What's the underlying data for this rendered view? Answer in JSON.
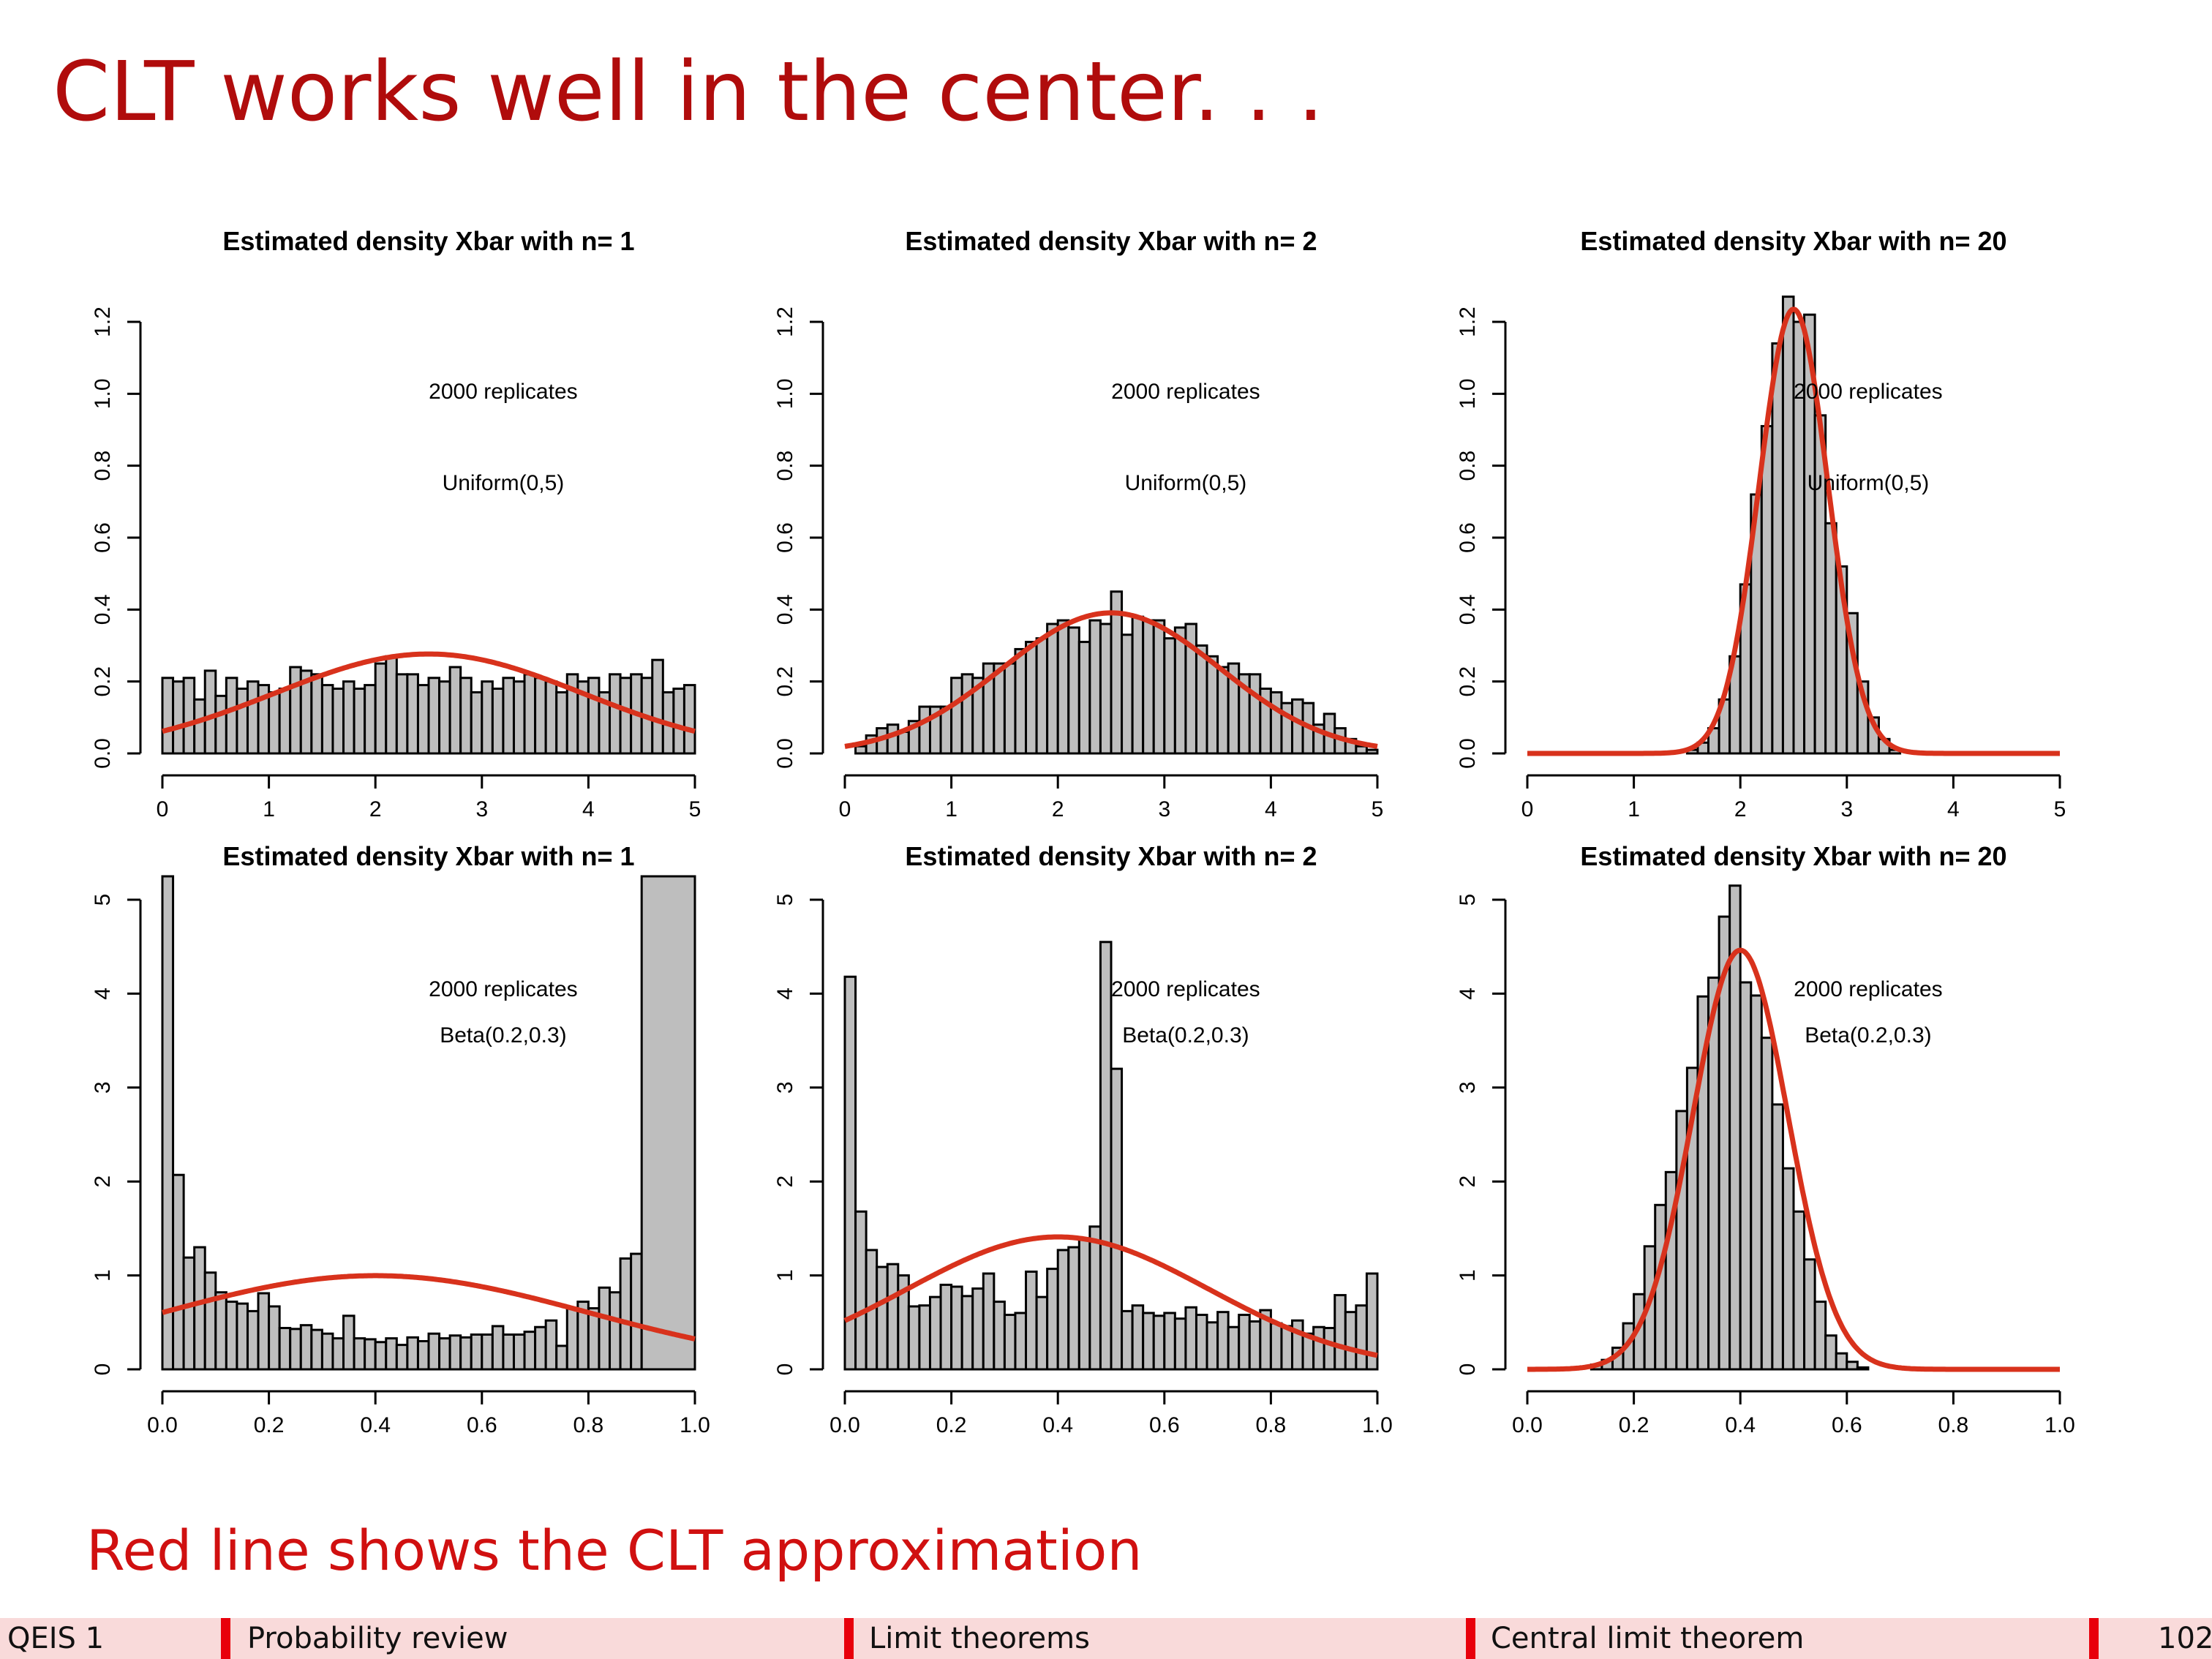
{
  "slide": {
    "title": "CLT works well in the center. . .",
    "subtitle": "Red line shows the CLT approximation"
  },
  "footer": {
    "course": "QEIS 1",
    "sections": [
      "Probability review",
      "Limit theorems",
      "Central limit theorem"
    ],
    "page": "102"
  },
  "colors": {
    "title": "#b00c0c",
    "bar_fill": "#bebebe",
    "bar_stroke": "#000000",
    "curve": "#d8321c",
    "footer_bg": "#f9dada",
    "footer_marker": "#e8000b"
  },
  "chart_data": [
    {
      "type": "bar",
      "title": "Estimated density Xbar with n= 1",
      "annotation": [
        "2000  replicates",
        "Uniform(0,5)"
      ],
      "xlim": [
        0,
        5
      ],
      "ylim": [
        0,
        1.2
      ],
      "xticks": [
        0,
        1,
        2,
        3,
        4,
        5
      ],
      "yticks": [
        0.0,
        0.2,
        0.4,
        0.6,
        0.8,
        1.0,
        1.2
      ],
      "xtick_labels": [
        "0",
        "1",
        "2",
        "3",
        "4",
        "5"
      ],
      "ytick_labels": [
        "0.0",
        "0.2",
        "0.4",
        "0.6",
        "0.8",
        "1.0",
        "1.2"
      ],
      "bin_width": 0.1,
      "values": [
        0.21,
        0.2,
        0.21,
        0.15,
        0.23,
        0.16,
        0.21,
        0.18,
        0.2,
        0.19,
        0.17,
        0.18,
        0.24,
        0.23,
        0.22,
        0.19,
        0.18,
        0.2,
        0.18,
        0.19,
        0.25,
        0.27,
        0.22,
        0.22,
        0.19,
        0.21,
        0.2,
        0.24,
        0.21,
        0.17,
        0.2,
        0.18,
        0.21,
        0.2,
        0.22,
        0.21,
        0.2,
        0.17,
        0.22,
        0.2,
        0.21,
        0.17,
        0.22,
        0.21,
        0.22,
        0.21,
        0.26,
        0.17,
        0.18,
        0.19
      ],
      "curve": {
        "dist": "normal",
        "mean": 2.5,
        "sd": 1.443
      }
    },
    {
      "type": "bar",
      "title": "Estimated density Xbar with n= 2",
      "annotation": [
        "2000  replicates",
        "Uniform(0,5)"
      ],
      "xlim": [
        0,
        5
      ],
      "ylim": [
        0,
        1.2
      ],
      "xticks": [
        0,
        1,
        2,
        3,
        4,
        5
      ],
      "yticks": [
        0.0,
        0.2,
        0.4,
        0.6,
        0.8,
        1.0,
        1.2
      ],
      "xtick_labels": [
        "0",
        "1",
        "2",
        "3",
        "4",
        "5"
      ],
      "ytick_labels": [
        "0.0",
        "0.2",
        "0.4",
        "0.6",
        "0.8",
        "1.0",
        "1.2"
      ],
      "bin_width": 0.1,
      "values": [
        0.0,
        0.02,
        0.05,
        0.07,
        0.08,
        0.06,
        0.09,
        0.13,
        0.13,
        0.13,
        0.21,
        0.22,
        0.21,
        0.25,
        0.25,
        0.25,
        0.29,
        0.31,
        0.32,
        0.36,
        0.37,
        0.35,
        0.31,
        0.37,
        0.36,
        0.45,
        0.33,
        0.38,
        0.37,
        0.37,
        0.32,
        0.35,
        0.36,
        0.3,
        0.27,
        0.24,
        0.25,
        0.22,
        0.22,
        0.18,
        0.17,
        0.14,
        0.15,
        0.14,
        0.08,
        0.11,
        0.07,
        0.04,
        0.02,
        0.01
      ],
      "curve": {
        "dist": "normal",
        "mean": 2.5,
        "sd": 1.021
      }
    },
    {
      "type": "bar",
      "title": "Estimated density Xbar with n= 20",
      "annotation": [
        "2000  replicates",
        "Uniform(0,5)"
      ],
      "xlim": [
        0,
        5
      ],
      "ylim": [
        0,
        1.2
      ],
      "xticks": [
        0,
        1,
        2,
        3,
        4,
        5
      ],
      "yticks": [
        0.0,
        0.2,
        0.4,
        0.6,
        0.8,
        1.0,
        1.2
      ],
      "xtick_labels": [
        "0",
        "1",
        "2",
        "3",
        "4",
        "5"
      ],
      "ytick_labels": [
        "0.0",
        "0.2",
        "0.4",
        "0.6",
        "0.8",
        "1.0",
        "1.2"
      ],
      "bin_start": 1.5,
      "bin_width": 0.1,
      "values": [
        0.01,
        0.03,
        0.07,
        0.15,
        0.27,
        0.47,
        0.72,
        0.91,
        1.14,
        1.27,
        1.2,
        1.22,
        0.94,
        0.64,
        0.52,
        0.39,
        0.2,
        0.1,
        0.04,
        0.01
      ],
      "curve": {
        "dist": "normal",
        "mean": 2.5,
        "sd": 0.323
      }
    },
    {
      "type": "bar",
      "title": "Estimated density Xbar with n= 1",
      "annotation": [
        "2000  replicates",
        "Beta(0.2,0.3)"
      ],
      "xlim": [
        0,
        1
      ],
      "ylim": [
        0,
        5
      ],
      "xticks": [
        0,
        0.2,
        0.4,
        0.6,
        0.8,
        1.0
      ],
      "yticks": [
        0,
        1,
        2,
        3,
        4,
        5
      ],
      "xtick_labels": [
        "0.0",
        "0.2",
        "0.4",
        "0.6",
        "0.8",
        "1.0"
      ],
      "ytick_labels": [
        "0",
        "1",
        "2",
        "3",
        "4",
        "5"
      ],
      "bin_width": 0.02,
      "values": [
        5.6,
        2.07,
        1.19,
        1.3,
        1.03,
        0.82,
        0.72,
        0.7,
        0.62,
        0.81,
        0.67,
        0.44,
        0.43,
        0.47,
        0.42,
        0.38,
        0.33,
        0.57,
        0.33,
        0.32,
        0.29,
        0.33,
        0.26,
        0.34,
        0.3,
        0.38,
        0.33,
        0.36,
        0.34,
        0.37,
        0.37,
        0.46,
        0.37,
        0.37,
        0.4,
        0.45,
        0.52,
        0.25,
        0.65,
        0.72,
        0.65,
        0.87,
        0.82,
        1.18,
        1.23,
        5.9
      ],
      "bins_shown_end": 1.0,
      "curve": {
        "dist": "normal",
        "mean": 0.4,
        "sd": 0.4
      }
    },
    {
      "type": "bar",
      "title": "Estimated density Xbar with n= 2",
      "annotation": [
        "2000  replicates",
        "Beta(0.2,0.3)"
      ],
      "xlim": [
        0,
        1
      ],
      "ylim": [
        0,
        5
      ],
      "xticks": [
        0,
        0.2,
        0.4,
        0.6,
        0.8,
        1.0
      ],
      "yticks": [
        0,
        1,
        2,
        3,
        4,
        5
      ],
      "xtick_labels": [
        "0.0",
        "0.2",
        "0.4",
        "0.6",
        "0.8",
        "1.0"
      ],
      "ytick_labels": [
        "0",
        "1",
        "2",
        "3",
        "4",
        "5"
      ],
      "bin_width": 0.02,
      "values": [
        4.18,
        1.68,
        1.27,
        1.09,
        1.12,
        1.0,
        0.67,
        0.68,
        0.77,
        0.9,
        0.88,
        0.78,
        0.86,
        1.02,
        0.72,
        0.58,
        0.6,
        1.04,
        0.77,
        1.07,
        1.27,
        1.3,
        1.38,
        1.52,
        4.55,
        3.2,
        0.62,
        0.68,
        0.6,
        0.57,
        0.6,
        0.54,
        0.66,
        0.58,
        0.5,
        0.61,
        0.45,
        0.58,
        0.51,
        0.63,
        0.49,
        0.46,
        0.52,
        0.38,
        0.45,
        0.44,
        0.79,
        0.61,
        0.68,
        1.02
      ],
      "curve": {
        "dist": "normal",
        "mean": 0.4,
        "sd": 0.283
      }
    },
    {
      "type": "bar",
      "title": "Estimated density Xbar with n= 20",
      "annotation": [
        "2000  replicates",
        "Beta(0.2,0.3)"
      ],
      "xlim": [
        0,
        1
      ],
      "ylim": [
        0,
        5
      ],
      "xticks": [
        0,
        0.2,
        0.4,
        0.6,
        0.8,
        1.0
      ],
      "yticks": [
        0,
        1,
        2,
        3,
        4,
        5
      ],
      "xtick_labels": [
        "0.0",
        "0.2",
        "0.4",
        "0.6",
        "0.8",
        "1.0"
      ],
      "ytick_labels": [
        "0",
        "1",
        "2",
        "3",
        "4",
        "5"
      ],
      "bin_start": 0.12,
      "bin_width": 0.02,
      "values": [
        0.05,
        0.1,
        0.23,
        0.49,
        0.8,
        1.31,
        1.75,
        2.1,
        2.75,
        3.21,
        3.97,
        4.17,
        4.82,
        5.15,
        4.12,
        3.98,
        3.53,
        2.82,
        2.14,
        1.68,
        1.17,
        0.72,
        0.36,
        0.17,
        0.08,
        0.02
      ],
      "curve": {
        "dist": "normal",
        "mean": 0.4,
        "sd": 0.0894
      }
    }
  ]
}
